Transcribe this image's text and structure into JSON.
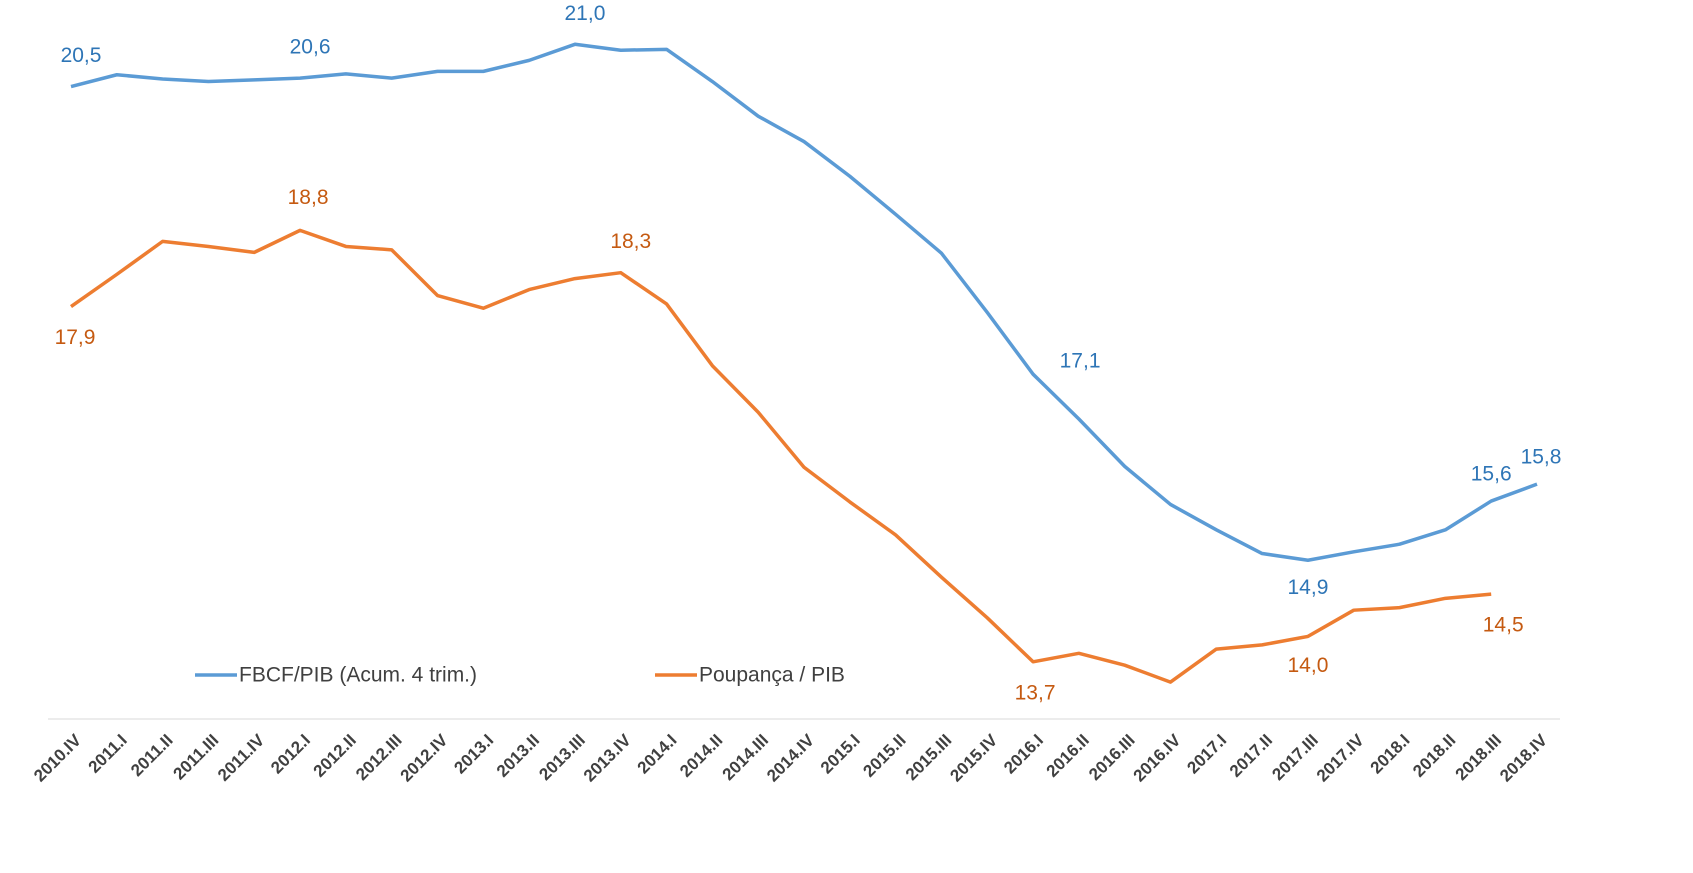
{
  "chart_data": {
    "type": "line",
    "categories": [
      "2010.IV",
      "2011.I",
      "2011.II",
      "2011.III",
      "2011.IV",
      "2012.I",
      "2012.II",
      "2012.III",
      "2012.IV",
      "2013.I",
      "2013.II",
      "2013.III",
      "2013.IV",
      "2014.I",
      "2014.II",
      "2014.III",
      "2014.IV",
      "2015.I",
      "2015.II",
      "2015.III",
      "2015.IV",
      "2016.I",
      "2016.II",
      "2016.III",
      "2016.IV",
      "2017.I",
      "2017.II",
      "2017.III",
      "2017.IV",
      "2018.I",
      "2018.II",
      "2018.III",
      "2018.IV"
    ],
    "series": [
      {
        "name": "FBCF/PIB (Acum. 4 trim.)",
        "color": "#5b9bd5",
        "values": [
          20.5,
          20.64,
          20.59,
          20.56,
          20.58,
          20.6,
          20.65,
          20.6,
          20.68,
          20.68,
          20.81,
          21.0,
          20.93,
          20.94,
          20.56,
          20.15,
          19.85,
          19.44,
          18.99,
          18.53,
          17.83,
          17.1,
          16.57,
          16.01,
          15.56,
          15.26,
          14.98,
          14.9,
          15.0,
          15.09,
          15.26,
          15.6,
          15.8
        ],
        "value_labels": [
          "20,5",
          null,
          null,
          null,
          null,
          "20,6",
          null,
          null,
          null,
          null,
          null,
          "21,0",
          null,
          null,
          null,
          null,
          null,
          null,
          null,
          null,
          null,
          "17,1",
          null,
          null,
          null,
          null,
          null,
          "14,9",
          null,
          null,
          null,
          "15,6",
          "15,8"
        ],
        "label_color": "#2e75b6"
      },
      {
        "name": "Poupança / PIB",
        "color": "#ed7d31",
        "values": [
          17.9,
          18.28,
          18.67,
          18.61,
          18.54,
          18.8,
          18.61,
          18.57,
          18.03,
          17.88,
          18.1,
          18.23,
          18.3,
          17.93,
          17.2,
          16.65,
          16.0,
          15.59,
          15.2,
          14.7,
          14.22,
          13.7,
          13.8,
          13.66,
          13.46,
          13.85,
          13.9,
          14.0,
          14.31,
          14.34,
          14.45,
          14.5,
          null
        ],
        "value_labels": [
          "17,9",
          null,
          null,
          null,
          null,
          "18,8",
          null,
          null,
          null,
          null,
          null,
          null,
          "18,3",
          null,
          null,
          null,
          null,
          null,
          null,
          null,
          null,
          "13,7",
          null,
          null,
          null,
          null,
          null,
          "14,0",
          null,
          null,
          null,
          "14,5",
          null
        ],
        "label_color": "#c55a11"
      }
    ],
    "ylim": [
      13,
      21.5
    ]
  }
}
